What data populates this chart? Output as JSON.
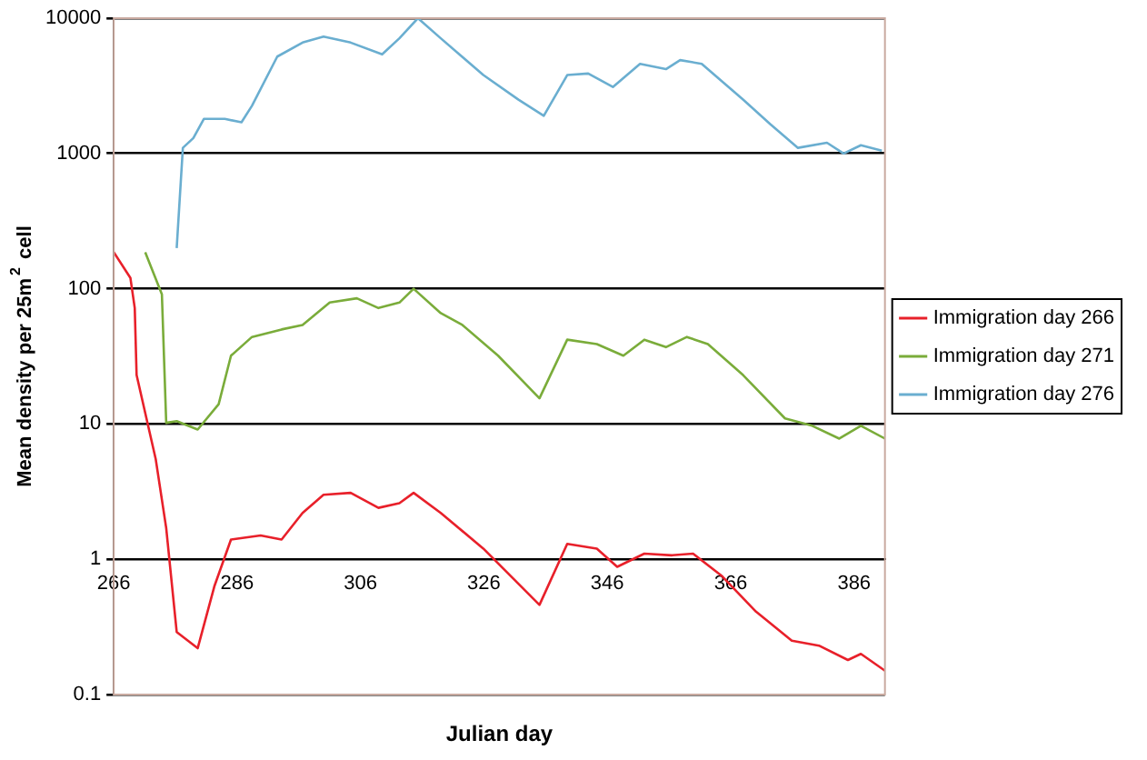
{
  "chart_data": {
    "type": "line",
    "xlabel": "Julian day",
    "ylabel": "Mean density per 25m$^{2}$ cell",
    "log": true,
    "grid": "y",
    "legend": "right",
    "xlim": [
      266,
      391
    ],
    "xticks": [
      266,
      286,
      306,
      326,
      346,
      366,
      386
    ],
    "ylim": [
      0.1,
      10000
    ],
    "yticks": [
      0.1,
      1,
      10,
      100,
      1000,
      10000
    ],
    "series": [
      {
        "name": "Immigration day 266",
        "color": "#e8202a",
        "x": [
          266,
          268.7,
          269.4,
          269.7,
          272.8,
          274.5,
          276.2,
          279.6,
          282.3,
          285,
          289.8,
          293.2,
          296.6,
          300,
          304.4,
          308.9,
          312.3,
          314.6,
          319,
          325.9,
          335,
          339.5,
          344.3,
          347.6,
          352,
          356.5,
          359.9,
          364.6,
          370.1,
          375.9,
          380.3,
          385,
          387.1,
          391
        ],
        "values": [
          186,
          120,
          72,
          23,
          5.5,
          1.7,
          0.29,
          0.22,
          0.63,
          1.4,
          1.5,
          1.4,
          2.2,
          3.0,
          3.1,
          2.4,
          2.6,
          3.1,
          2.2,
          1.2,
          0.46,
          1.3,
          1.2,
          0.88,
          1.1,
          1.07,
          1.1,
          0.75,
          0.41,
          0.25,
          0.23,
          0.18,
          0.2,
          0.15
        ]
      },
      {
        "name": "Immigration day 271",
        "color": "#7aac3a",
        "x": [
          271.1,
          273.8,
          274.5,
          276.2,
          279.6,
          283,
          285,
          288.4,
          293.2,
          296.6,
          301,
          305.4,
          308.9,
          312.3,
          314.6,
          319,
          322.5,
          328.3,
          335,
          339.5,
          344.3,
          348.6,
          352,
          355.5,
          358.9,
          362.3,
          368,
          374.8,
          379.2,
          383.6,
          387.1,
          391
        ],
        "values": [
          186,
          91,
          10.2,
          10.5,
          9.1,
          14,
          32,
          44,
          50,
          54,
          79,
          85,
          72,
          79,
          100,
          66,
          54,
          32,
          15.5,
          42,
          39,
          32,
          42,
          37,
          44,
          39,
          23,
          11,
          9.7,
          7.8,
          9.7,
          7.8
        ]
      },
      {
        "name": "Immigration day 276",
        "color": "#6aaed0",
        "x": [
          276.2,
          277.2,
          278.9,
          280.6,
          284,
          286.7,
          288.4,
          292.5,
          296.6,
          300,
          304.4,
          309.5,
          312.3,
          315.3,
          319,
          325.9,
          331.6,
          335.7,
          339.5,
          342.9,
          346.9,
          351.3,
          355.5,
          357.8,
          361.3,
          368,
          372.4,
          376.9,
          381.6,
          384.3,
          387.1,
          390.5
        ],
        "values": [
          200,
          1100,
          1300,
          1800,
          1800,
          1700,
          2250,
          5200,
          6600,
          7300,
          6600,
          5400,
          7100,
          10000,
          7100,
          3800,
          2500,
          1900,
          3800,
          3900,
          3100,
          4600,
          4200,
          4900,
          4600,
          2500,
          1650,
          1100,
          1200,
          1000,
          1150,
          1050
        ]
      }
    ]
  }
}
